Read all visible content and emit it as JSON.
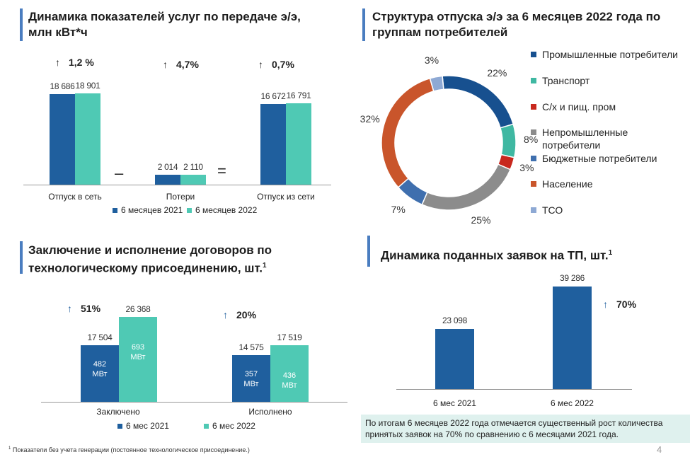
{
  "panel1": {
    "title_line1": "Динамика показателей услуг по передаче э/э,",
    "title_line2": "млн кВт*ч",
    "growth": [
      "1,2 %",
      "4,7%",
      "0,7%"
    ],
    "arrow": "↑",
    "minus": "–",
    "equals": "=",
    "legend": [
      "6 месяцев 2021",
      "6 месяцев 2022"
    ]
  },
  "panel2": {
    "title_line1": "Структура отпуска э/э за  6 месяцев 2022 года по",
    "title_line2": "группам потребителей"
  },
  "panel3": {
    "title_line1": "Заключение и исполнение договоров по",
    "title_line2": "технологическому присоединению, шт.",
    "sup": "1",
    "growth": [
      "51%",
      "20%"
    ],
    "arrow": "↑",
    "legend": [
      "6 мес 2021",
      "6 мес 2022"
    ],
    "inbar": [
      {
        "num": "482",
        "unit": "МВт"
      },
      {
        "num": "693",
        "unit": "МВт"
      },
      {
        "num": "357",
        "unit": "МВт"
      },
      {
        "num": "436",
        "unit": "МВт"
      }
    ]
  },
  "panel4": {
    "title": "Динамика поданных заявок на ТП, шт.",
    "sup": "1",
    "growth": "70%",
    "arrow": "↑",
    "note": "По итогам  6 месяцев 2022 года  отмечается существенный рост количества принятых заявок на 70%  по  сравнению с  6 месяцами 2021 года."
  },
  "footnote": {
    "sup": "1",
    "text": " Показатели без учета генерации (постоянное технологическое присоединение.)"
  },
  "page_number": "4",
  "colors": {
    "dark_blue": "#1f5f9e",
    "teal": "#4fc9b4",
    "title_bar": "#4a7dc0"
  },
  "chart_data": [
    {
      "type": "bar",
      "title": "Динамика показателей услуг по передаче э/э, млн кВт*ч",
      "categories": [
        "Отпуск в сеть",
        "Потери",
        "Отпуск из сети"
      ],
      "series": [
        {
          "name": "6 месяцев 2021",
          "values": [
            18686,
            2014,
            16672
          ],
          "labels": [
            "18 686",
            "2 014",
            "16 672"
          ]
        },
        {
          "name": "6 месяцев 2022",
          "values": [
            18901,
            2110,
            16791
          ],
          "labels": [
            "18 901",
            "2 110",
            "16 791"
          ]
        }
      ],
      "ylim": [
        0,
        21000
      ]
    },
    {
      "type": "pie",
      "title": "Структура отпуска э/э за  6 месяцев 2022 года по группам потребителей",
      "slices": [
        {
          "name": "Промышленные потребители",
          "value": 22,
          "label": "22%",
          "color": "#17508f"
        },
        {
          "name": "Транспорт",
          "value": 8,
          "label": "8%",
          "color": "#3fb8a2"
        },
        {
          "name": "С/х и пищ. пром",
          "value": 3,
          "label": "3%",
          "color": "#c8281e"
        },
        {
          "name": "Непромышленные потребители",
          "value": 25,
          "label": "25%",
          "color": "#8c8c8c"
        },
        {
          "name": "Бюджетные потребители",
          "value": 7,
          "label": "7%",
          "color": "#3f6fae"
        },
        {
          "name": "Население",
          "value": 32,
          "label": "32%",
          "color": "#c9552b"
        },
        {
          "name": "ТСО",
          "value": 3,
          "label": "3%",
          "color": "#8ea9d4"
        }
      ]
    },
    {
      "type": "bar",
      "title": "Заключение и исполнение договоров по технологическому присоединению, шт.",
      "categories": [
        "Заключено",
        "Исполнено"
      ],
      "series": [
        {
          "name": "6 мес 2021",
          "values": [
            17504,
            14575
          ],
          "labels": [
            "17 504",
            "14 575"
          ]
        },
        {
          "name": "6 мес 2022",
          "values": [
            26368,
            17519
          ],
          "labels": [
            "26 368",
            "17 519"
          ]
        }
      ],
      "ylim": [
        0,
        30000
      ]
    },
    {
      "type": "bar",
      "title": "Динамика поданных заявок на ТП, шт.",
      "categories": [
        "6 мес 2021",
        "6 мес 2022"
      ],
      "values": [
        23098,
        39286
      ],
      "labels": [
        "23 098",
        "39 286"
      ],
      "ylim": [
        0,
        40000
      ]
    }
  ]
}
